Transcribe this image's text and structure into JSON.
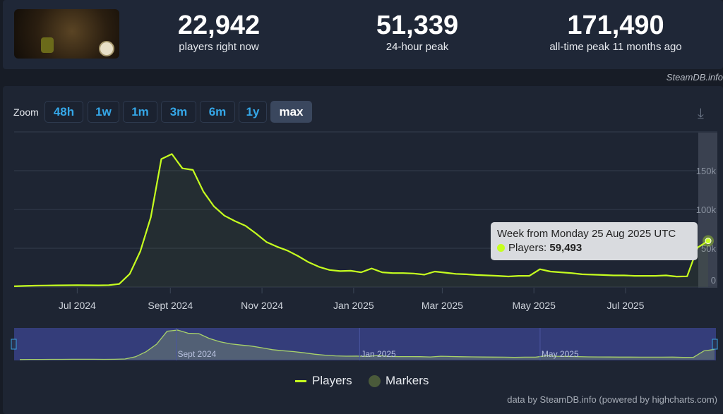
{
  "header": {
    "stats": [
      {
        "value": "22,942",
        "label": "players right now"
      },
      {
        "value": "51,339",
        "label": "24-hour peak"
      },
      {
        "value": "171,490",
        "label": "all-time peak 11 months ago"
      }
    ],
    "credit": "SteamDB.info"
  },
  "toolbar": {
    "zoom_label": "Zoom",
    "buttons": [
      "48h",
      "1w",
      "1m",
      "3m",
      "6m",
      "1y",
      "max"
    ],
    "active": "max",
    "download_icon": "download-icon"
  },
  "tooltip": {
    "title": "Week from Monday 25 Aug 2025 UTC",
    "series_label": "Players:",
    "value": "59,493"
  },
  "legend": {
    "players": "Players",
    "markers": "Markers"
  },
  "footer_credit": "data by SteamDB.info (powered by highcharts.com)",
  "chart_data": {
    "type": "line",
    "x_interval": "weekly",
    "x_start": "2024-05-20",
    "x_ticks": [
      "Jul 2024",
      "Sept 2024",
      "Nov 2024",
      "Jan 2025",
      "Mar 2025",
      "May 2025",
      "Jul 2025"
    ],
    "y_ticks": [
      "0",
      "50k",
      "100k",
      "150k"
    ],
    "ylim": [
      0,
      200000
    ],
    "grid": true,
    "navigator_labels": [
      "Sept 2024",
      "Jan 2025",
      "May 2025"
    ],
    "colors": {
      "players": "#c6ff1f",
      "markers": "#4a5a3a"
    },
    "series": [
      {
        "name": "Players",
        "values": [
          1000,
          1500,
          1800,
          2000,
          2200,
          2300,
          2500,
          2300,
          2200,
          2500,
          4000,
          17000,
          46000,
          90000,
          165000,
          171490,
          153000,
          151000,
          123000,
          104000,
          92000,
          85000,
          79000,
          69000,
          58000,
          52000,
          47000,
          40000,
          32000,
          26000,
          22000,
          20500,
          21000,
          19000,
          24000,
          19000,
          18000,
          18000,
          17500,
          16000,
          20000,
          18500,
          17000,
          16500,
          15500,
          15000,
          14500,
          13600,
          14500,
          14500,
          23000,
          20000,
          19000,
          18000,
          16500,
          16000,
          15500,
          15000,
          15000,
          14500,
          14500,
          14500,
          15000,
          13500,
          13800,
          51000,
          59493
        ]
      }
    ]
  }
}
